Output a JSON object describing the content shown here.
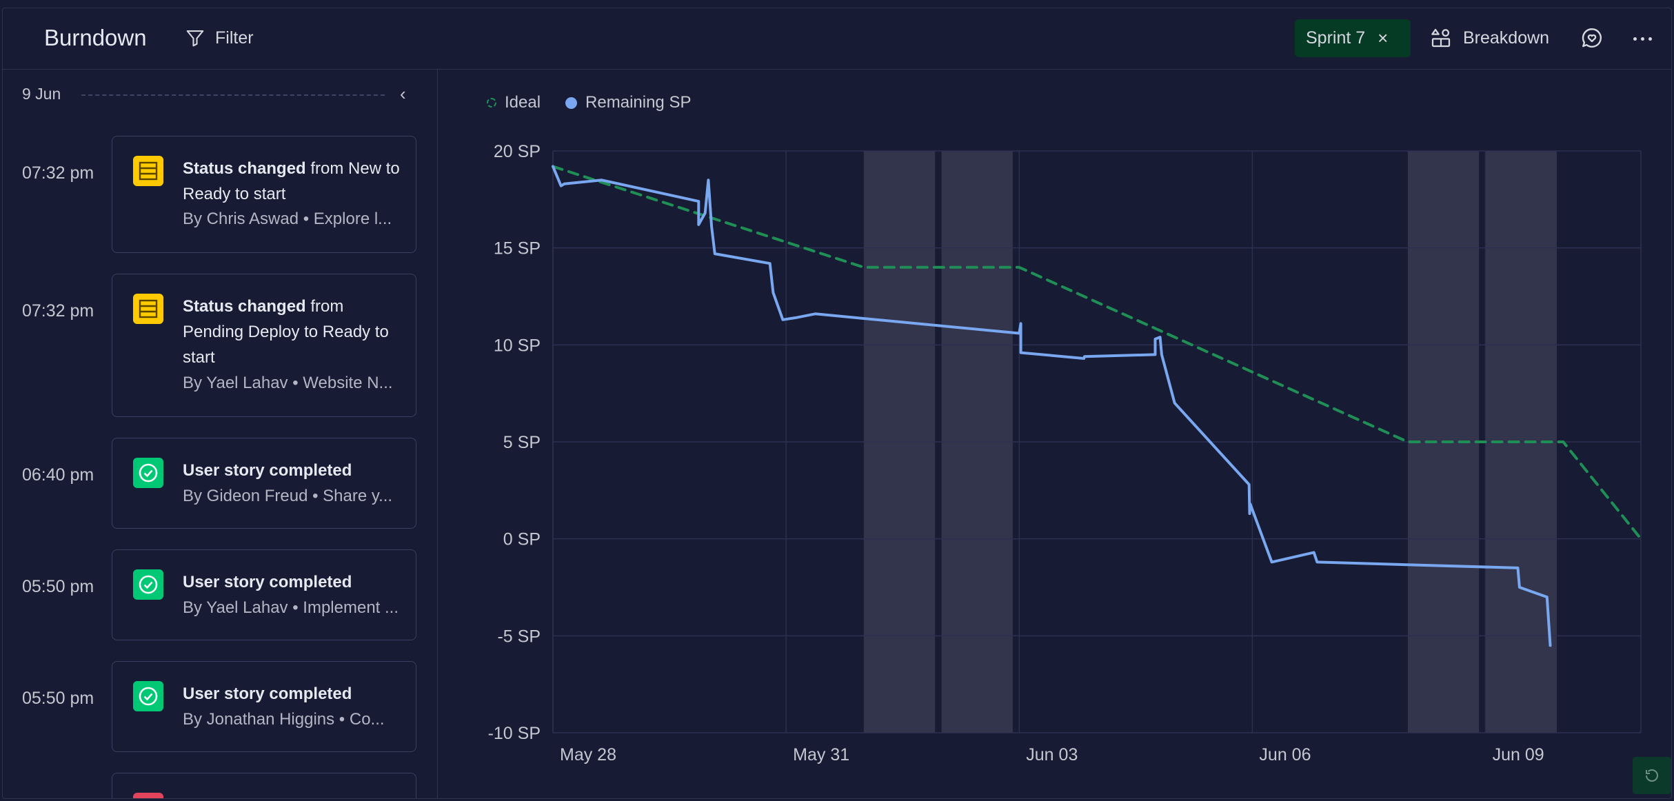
{
  "header": {
    "title": "Burndown",
    "filter_label": "Filter",
    "sprint_chip_label": "Sprint 7",
    "sprint_chip_close": "×",
    "breakdown_label": "Breakdown"
  },
  "timeline": {
    "date": "9 Jun",
    "events": [
      {
        "time": "07:32 pm",
        "icon": "status-icon",
        "color": "#ffcb00",
        "bold": "Status changed",
        "rest": " from New to Ready to start",
        "by": "By Chris Aswad • Explore l..."
      },
      {
        "time": "07:32 pm",
        "icon": "status-icon",
        "color": "#ffcb00",
        "bold": "Status changed",
        "rest": " from Pending Deploy to Ready to start",
        "by": "By Yael Lahav • Website N..."
      },
      {
        "time": "06:40 pm",
        "icon": "check-circle-icon",
        "color": "#00c875",
        "bold": "User story completed",
        "rest": "",
        "by": "By Gideon Freud • Share y..."
      },
      {
        "time": "05:50 pm",
        "icon": "check-circle-icon",
        "color": "#00c875",
        "bold": "User story completed",
        "rest": "",
        "by": "By Yael Lahav • Implement ..."
      },
      {
        "time": "05:50 pm",
        "icon": "check-circle-icon",
        "color": "#00c875",
        "bold": "User story completed",
        "rest": "",
        "by": "By Jonathan Higgins • Co..."
      }
    ]
  },
  "chart_data": {
    "type": "line",
    "legend": [
      "Ideal",
      "Remaining SP"
    ],
    "legend_placement": "top-left",
    "ylim": [
      -10,
      20
    ],
    "y_ticks": [
      "20 SP",
      "15 SP",
      "10 SP",
      "5 SP",
      "0 SP",
      "-5 SP",
      "-10 SP"
    ],
    "y_tick_values": [
      20,
      15,
      10,
      5,
      0,
      -5,
      -10
    ],
    "xlim": [
      "2023-05-28",
      "2023-06-11"
    ],
    "x_ticks": [
      {
        "label": "May 28",
        "date": "2023-05-28"
      },
      {
        "label": "May 31",
        "date": "2023-05-31"
      },
      {
        "label": "Jun 03",
        "date": "2023-06-03"
      },
      {
        "label": "Jun 06",
        "date": "2023-06-06"
      },
      {
        "label": "Jun 09",
        "date": "2023-06-09"
      }
    ],
    "grid": true,
    "non_working_days": [
      [
        "2023-06-01",
        "2023-06-01T22:00"
      ],
      [
        "2023-06-02",
        "2023-06-02T22:00"
      ],
      [
        "2023-06-08",
        "2023-06-08T22:00"
      ],
      [
        "2023-06-09",
        "2023-06-09T22:00"
      ]
    ],
    "series": [
      {
        "name": "Ideal",
        "color": "#1f8f55",
        "style": "dashed",
        "points": [
          [
            "2023-05-28",
            19.2
          ],
          [
            "2023-06-01",
            14.0
          ],
          [
            "2023-06-03",
            14.0
          ],
          [
            "2023-06-08",
            5.0
          ],
          [
            "2023-06-10",
            5.0
          ],
          [
            "2023-06-11",
            0.0
          ]
        ]
      },
      {
        "name": "Remaining SP",
        "color": "#7aa8f0",
        "style": "solid",
        "points": [
          [
            "2023-05-28T00:00",
            19.2
          ],
          [
            "2023-05-28T02:30",
            18.2
          ],
          [
            "2023-05-28T03:30",
            18.3
          ],
          [
            "2023-05-28T15:00",
            18.5
          ],
          [
            "2023-05-29T21:00",
            17.4
          ],
          [
            "2023-05-29T21:00",
            16.2
          ],
          [
            "2023-05-29T23:00",
            16.8
          ],
          [
            "2023-05-30T00:00",
            18.5
          ],
          [
            "2023-05-30T01:00",
            16.1
          ],
          [
            "2023-05-30T02:00",
            14.7
          ],
          [
            "2023-05-30T19:00",
            14.2
          ],
          [
            "2023-05-30T20:00",
            12.7
          ],
          [
            "2023-05-30T23:00",
            11.3
          ],
          [
            "2023-05-31T03:00",
            11.4
          ],
          [
            "2023-05-31T09:00",
            11.6
          ],
          [
            "2023-06-03T00:00",
            10.6
          ],
          [
            "2023-06-03T00:30",
            11.1
          ],
          [
            "2023-06-03T00:30",
            9.6
          ],
          [
            "2023-06-03T20:00",
            9.3
          ],
          [
            "2023-06-03T20:10",
            9.4
          ],
          [
            "2023-06-04T18:00",
            9.5
          ],
          [
            "2023-06-04T18:00",
            10.3
          ],
          [
            "2023-06-04T19:30",
            10.4
          ],
          [
            "2023-06-04T20:00",
            9.5
          ],
          [
            "2023-06-05T00:00",
            7.0
          ],
          [
            "2023-06-05T23:00",
            2.8
          ],
          [
            "2023-06-05T23:10",
            1.3
          ],
          [
            "2023-06-05T23:20",
            1.8
          ],
          [
            "2023-06-06T06:00",
            -1.2
          ],
          [
            "2023-06-06T19:00",
            -0.7
          ],
          [
            "2023-06-06T20:00",
            -1.2
          ],
          [
            "2023-06-09T10:00",
            -1.5
          ],
          [
            "2023-06-09T10:30",
            -2.5
          ],
          [
            "2023-06-09T19:00",
            -3.0
          ],
          [
            "2023-06-09T20:00",
            -5.5
          ]
        ]
      }
    ]
  }
}
